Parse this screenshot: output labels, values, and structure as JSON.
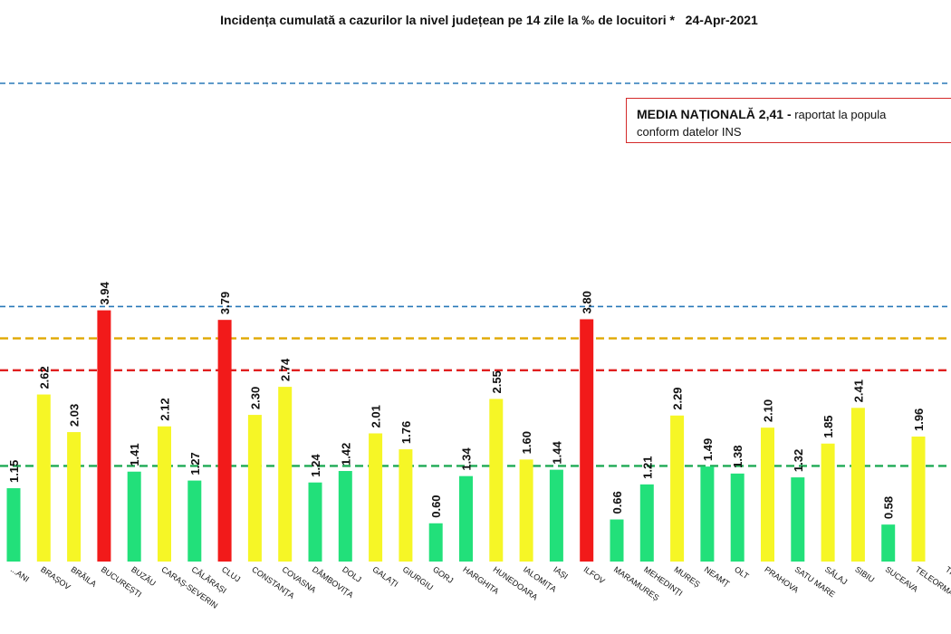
{
  "title": "Incidența cumulată a cazurilor la nivel județean pe 14 zile la ‰ de locuitori *   24-Apr-2021",
  "national_box": {
    "line1_bold": "MEDIA NAȚIONALĂ  2,41 -",
    "line1_rest": " raportat la popula",
    "line2": "conform datelor INS"
  },
  "colors": {
    "green": "#22e07a",
    "yellow": "#f6f626",
    "red": "#f21a1a",
    "line_blue": "#2878b8",
    "line_orange": "#e0a800",
    "line_red": "#e02020",
    "line_green": "#1faa55"
  },
  "chart_data": {
    "type": "bar",
    "ylim": [
      0,
      4.5
    ],
    "categories": [
      "...ANI",
      "BRAȘOV",
      "BRĂILA",
      "BUCUREȘTI",
      "BUZĂU",
      "CARAȘ-SEVERIN",
      "CĂLĂRAȘI",
      "CLUJ",
      "CONSTANȚA",
      "COVASNA",
      "DÂMBOVIȚA",
      "DOLJ",
      "GALAȚI",
      "GIURGIU",
      "GORJ",
      "HARGHITA",
      "HUNEDOARA",
      "IALOMIȚA",
      "IAȘI",
      "ILFOV",
      "MARAMUREȘ",
      "MEHEDINȚI",
      "MUREȘ",
      "NEAMȚ",
      "OLT",
      "PRAHOVA",
      "SATU MARE",
      "SĂLAJ",
      "SIBIU",
      "SUCEAVA",
      "TELEORMAN",
      "TIM..."
    ],
    "values": [
      1.15,
      2.62,
      2.03,
      3.94,
      1.41,
      2.12,
      1.27,
      3.79,
      2.3,
      2.74,
      1.24,
      1.42,
      2.01,
      1.76,
      0.6,
      1.34,
      2.55,
      1.6,
      1.44,
      3.8,
      0.66,
      1.21,
      2.29,
      1.49,
      1.38,
      2.1,
      1.32,
      1.85,
      2.41,
      0.58,
      1.96,
      null
    ],
    "value_labels": [
      "1.15",
      "2.62",
      "2.03",
      "3.94",
      "1.41",
      "2.12",
      "1.27",
      "3.79",
      "2.30",
      "2.74",
      "1.24",
      "1.42",
      "2.01",
      "1.76",
      "0.60",
      "1.34",
      "2.55",
      "1.60",
      "1.44",
      "3.80",
      "0.66",
      "1.21",
      "2.29",
      "1.49",
      "1.38",
      "2.10",
      "1.32",
      "1.85",
      "2.41",
      "0.58",
      "1.96",
      ""
    ],
    "bar_colors": [
      "green",
      "yellow",
      "yellow",
      "red",
      "green",
      "yellow",
      "green",
      "red",
      "yellow",
      "yellow",
      "green",
      "green",
      "yellow",
      "yellow",
      "green",
      "green",
      "yellow",
      "yellow",
      "green",
      "red",
      "green",
      "green",
      "yellow",
      "green",
      "green",
      "yellow",
      "green",
      "yellow",
      "yellow",
      "green",
      "yellow",
      ""
    ],
    "threshold_lines": [
      {
        "value": 1.5,
        "color": "line_green"
      },
      {
        "value": 3.0,
        "color": "line_red"
      },
      {
        "value": 3.5,
        "color": "line_orange"
      },
      {
        "value": 4.0,
        "color": "line_blue"
      },
      {
        "value": 7.5,
        "color": "line_blue"
      }
    ],
    "grid": false,
    "legend": "none"
  }
}
